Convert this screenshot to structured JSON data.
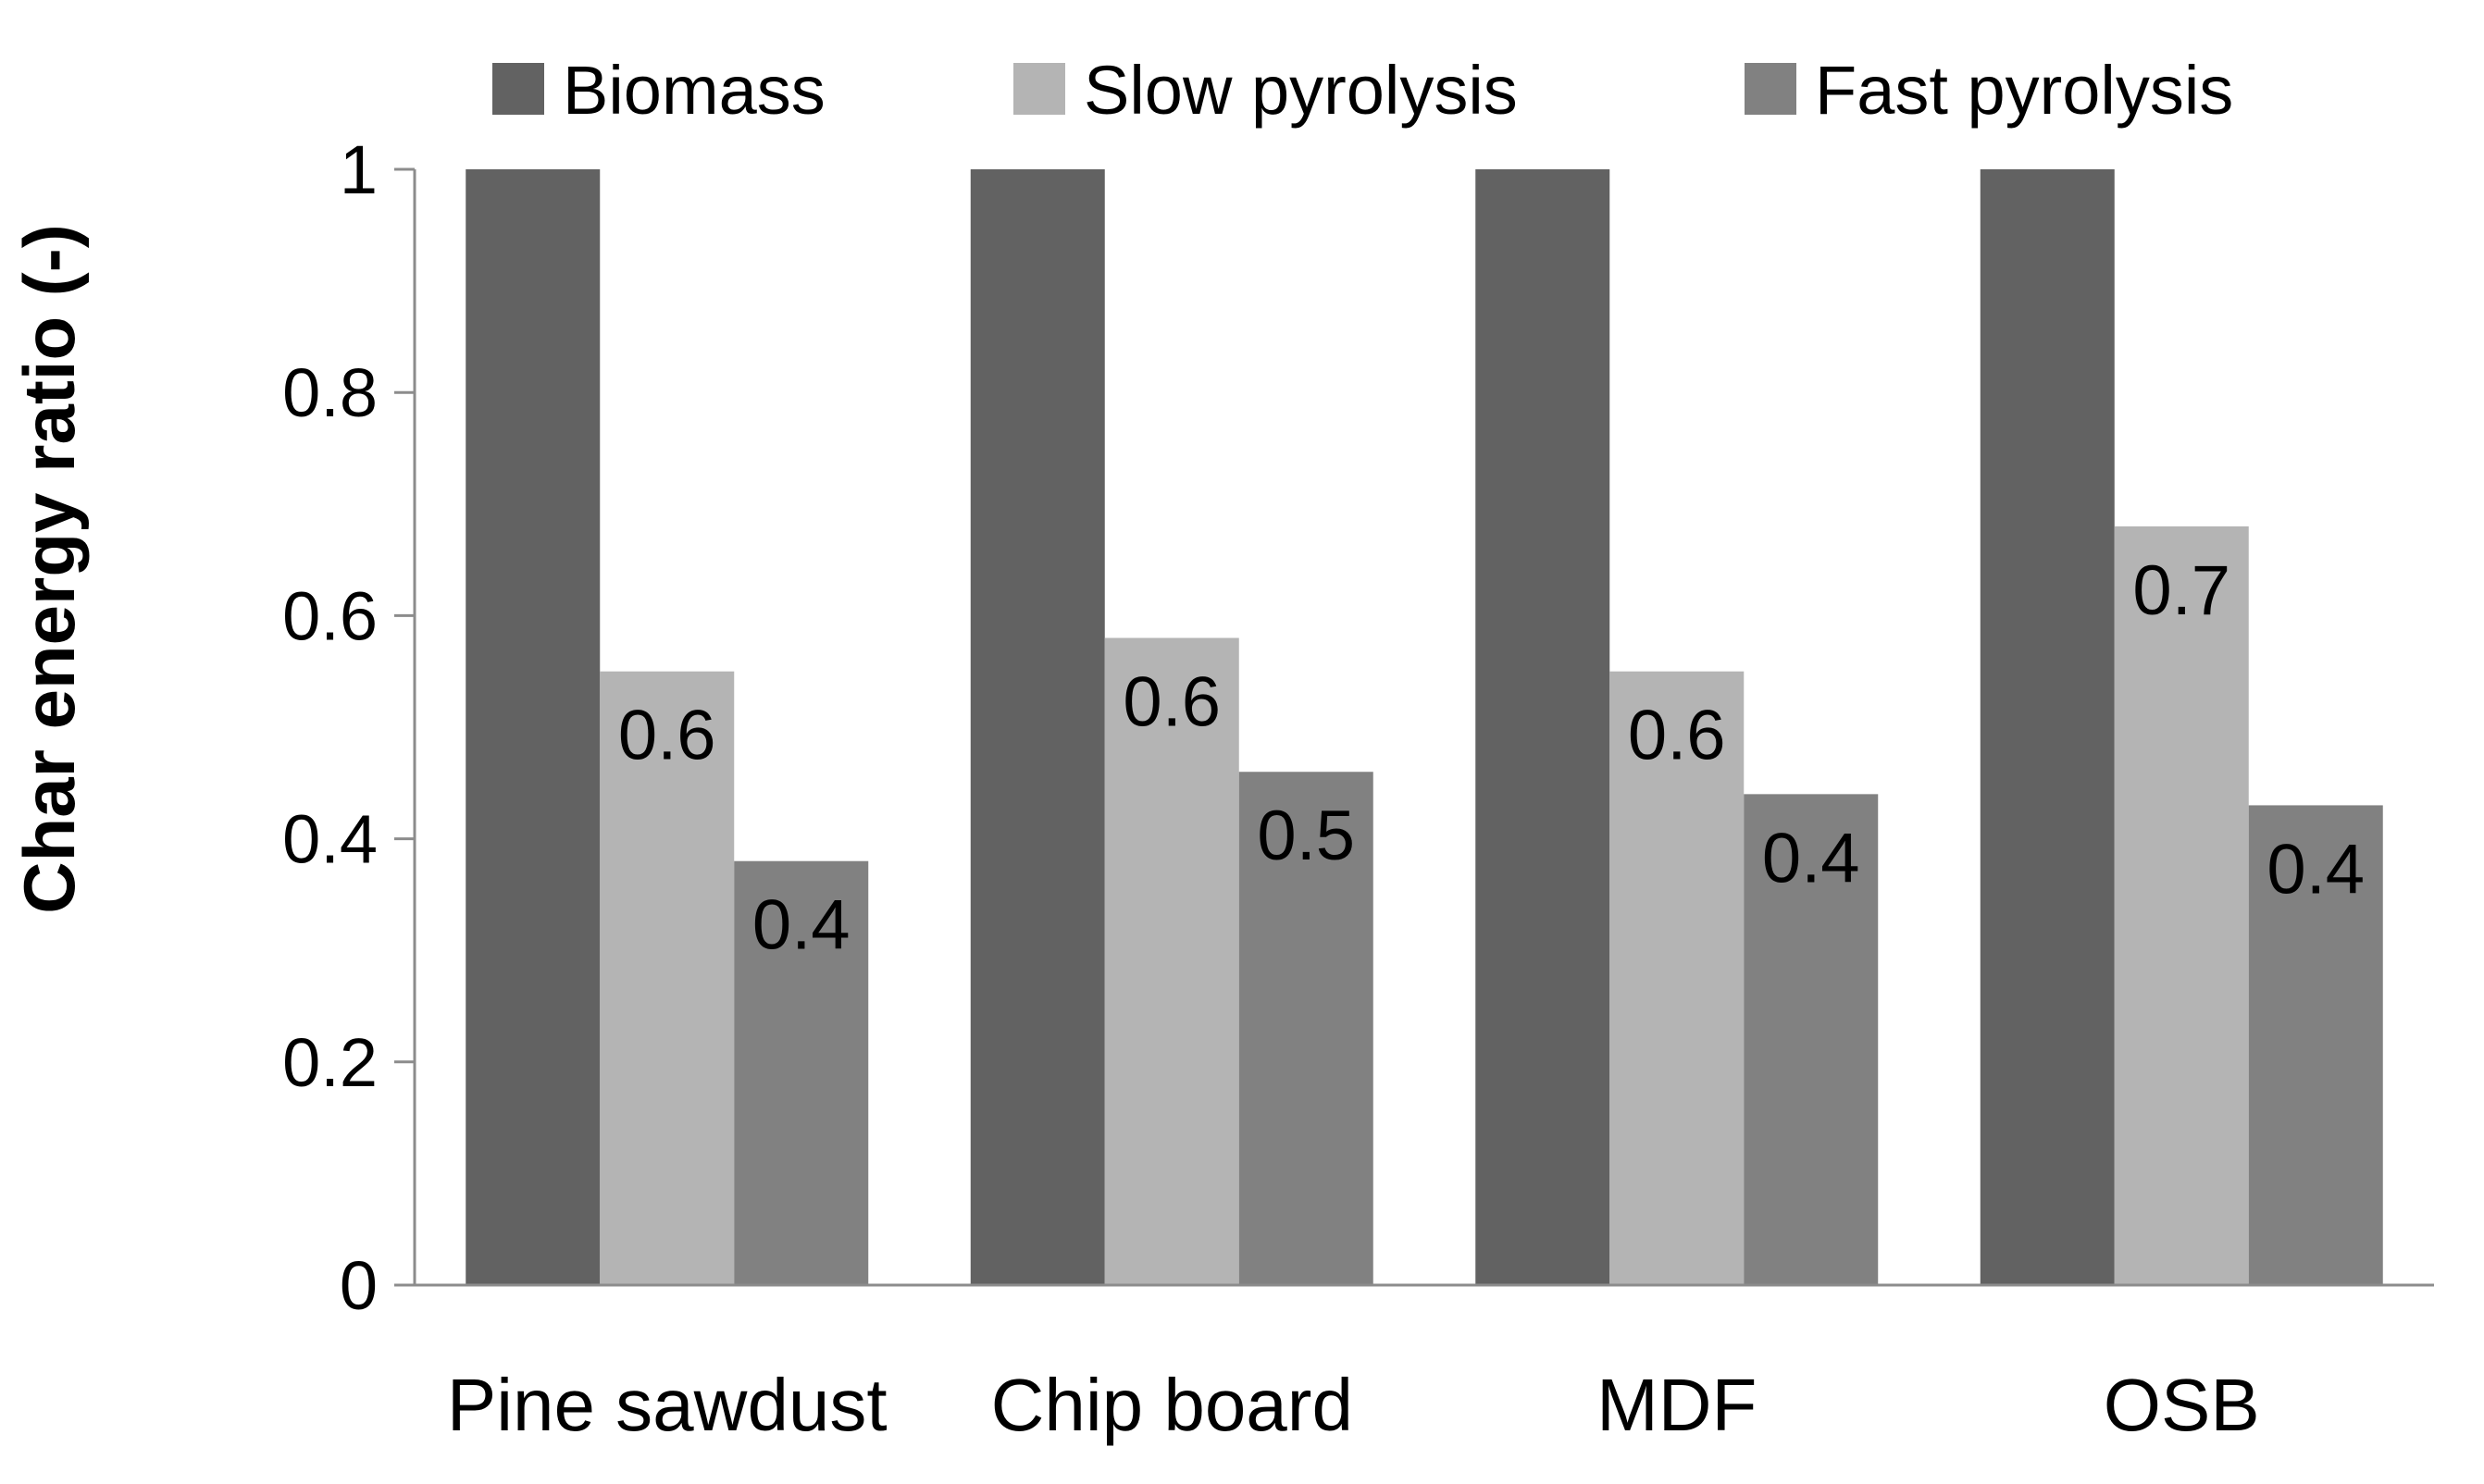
{
  "chart_data": {
    "type": "bar",
    "title": "",
    "xlabel": "",
    "ylabel": "Char energy ratio (-)",
    "ylim": [
      0,
      1
    ],
    "yticks": [
      {
        "value": 0,
        "label": "0"
      },
      {
        "value": 0.2,
        "label": "0.2"
      },
      {
        "value": 0.4,
        "label": "0.4"
      },
      {
        "value": 0.6,
        "label": "0.6"
      },
      {
        "value": 0.8,
        "label": "0.8"
      },
      {
        "value": 1,
        "label": "1"
      }
    ],
    "grid": false,
    "legend": "top",
    "categories": [
      "Pine sawdust",
      "Chip board",
      "MDF",
      "OSB"
    ],
    "series": [
      {
        "name": "Biomass",
        "color": "#626262",
        "values": [
          1.0,
          1.0,
          1.0,
          1.0
        ],
        "labels": [
          "",
          "",
          "",
          ""
        ]
      },
      {
        "name": "Slow pyrolysis",
        "color": "#b4b4b4",
        "values": [
          0.55,
          0.58,
          0.55,
          0.68
        ],
        "labels": [
          "0.6",
          "0.6",
          "0.6",
          "0.7"
        ]
      },
      {
        "name": "Fast pyrolysis",
        "color": "#818181",
        "values": [
          0.38,
          0.46,
          0.44,
          0.43
        ],
        "labels": [
          "0.4",
          "0.5",
          "0.4",
          "0.4"
        ]
      }
    ],
    "axis_color": "#8c8c8c"
  }
}
